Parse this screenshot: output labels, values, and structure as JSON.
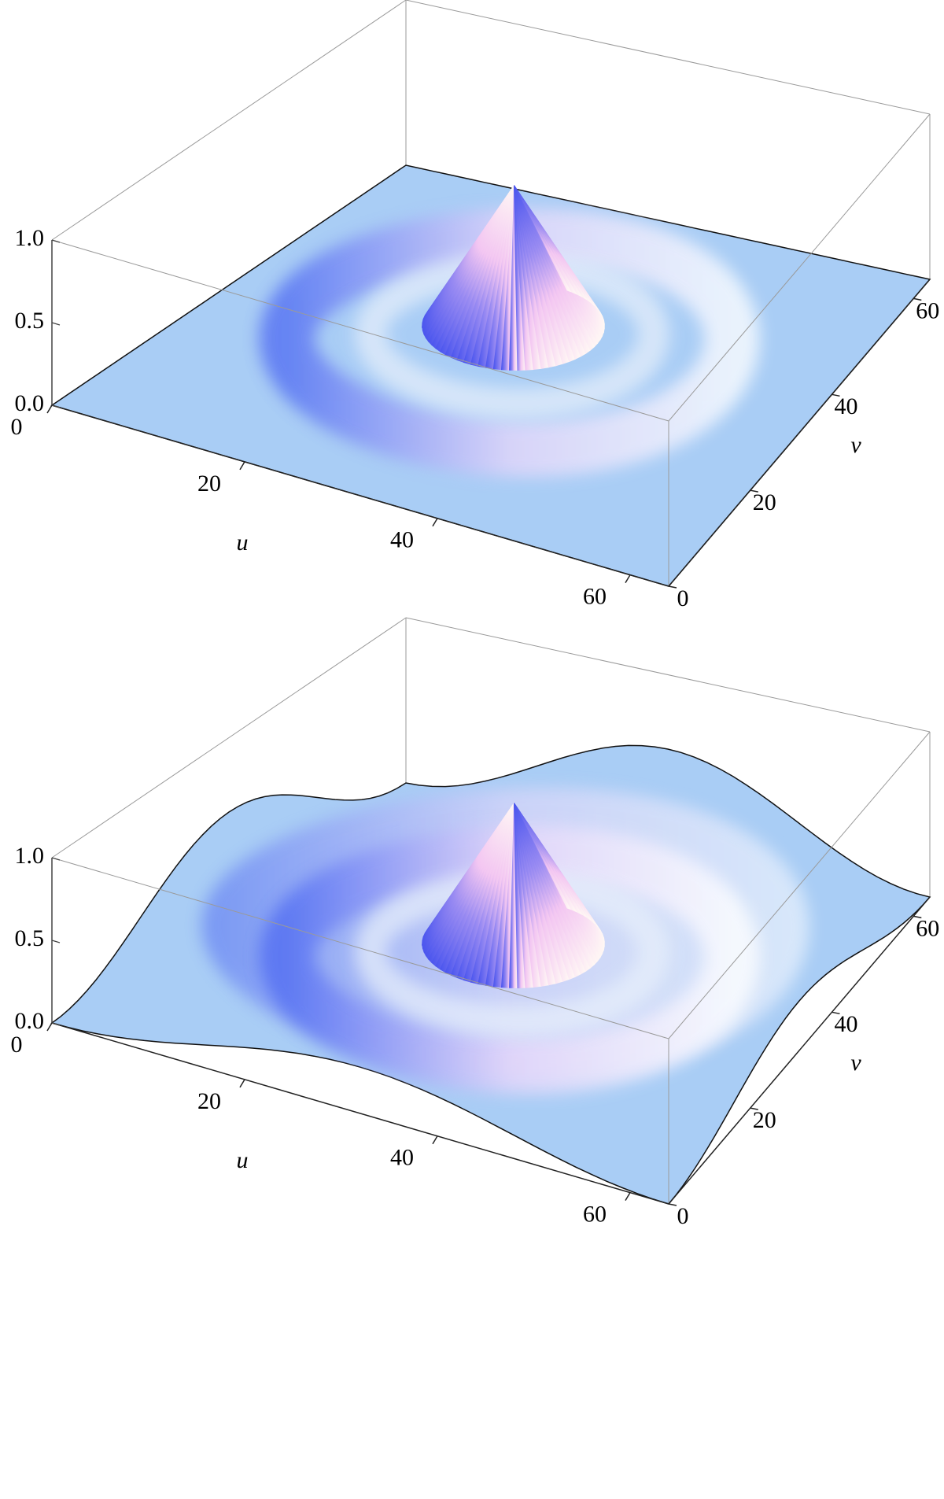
{
  "chart_data": [
    {
      "type": "surface3d",
      "x_label": "u",
      "y_label": "v",
      "color": "#a9cdf5",
      "xlim": [
        0,
        64
      ],
      "ylim": [
        0,
        64
      ],
      "zlim": [
        0,
        1
      ],
      "xticks": [
        0,
        20,
        40,
        60
      ],
      "yticks": [
        0,
        20,
        40,
        60
      ],
      "zticks": [
        {
          "value": 0,
          "label": "0.0"
        },
        {
          "value": 0.5,
          "label": "0.5"
        },
        {
          "value": 1,
          "label": "1.0"
        }
      ]
    },
    {
      "type": "surface3d",
      "x_label": "u",
      "y_label": "v",
      "color": "#a9cdf5",
      "xlim": [
        0,
        64
      ],
      "ylim": [
        0,
        64
      ],
      "zlim": [
        0,
        1
      ],
      "xticks": [
        0,
        20,
        40,
        60
      ],
      "yticks": [
        0,
        20,
        40,
        60
      ],
      "zticks": [
        {
          "value": 0,
          "label": "0.0"
        },
        {
          "value": 0.5,
          "label": "0.5"
        },
        {
          "value": 1,
          "label": "1.0"
        }
      ]
    }
  ]
}
